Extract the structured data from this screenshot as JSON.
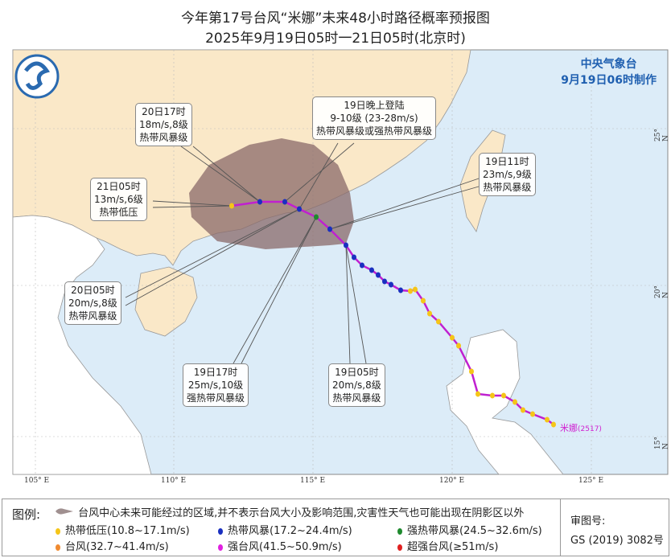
{
  "title": "今年第17号台风“米娜”未来48小时路径概率预报图",
  "subtitle": "2025年9月19日05时一21日05时(北京时)",
  "agency": {
    "name": "中央气象台",
    "made": "9月19日06时制作"
  },
  "typhoon_label": {
    "name": "米娜",
    "code": "(2517)"
  },
  "lon_ticks": [
    "105° E",
    "110° E",
    "115° E",
    "120° E",
    "125° E"
  ],
  "lat_ticks": [
    "25° N",
    "20° N",
    "15° N"
  ],
  "callouts": [
    {
      "time": "20日17时",
      "wind": "18m/s,8级",
      "level": "热带风暴级"
    },
    {
      "time": "19日晚上登陆",
      "wind": "9-10级 (23-28m/s)",
      "level": "热带风暴级或强热带风暴级"
    },
    {
      "time": "21日05时",
      "wind": "13m/s,6级",
      "level": "热带低压"
    },
    {
      "time": "19日11时",
      "wind": "23m/s,9级",
      "level": "热带风暴级"
    },
    {
      "time": "20日05时",
      "wind": "20m/s,8级",
      "level": "热带风暴级"
    },
    {
      "time": "19日17时",
      "wind": "25m/s,10级",
      "level": "强热带风暴级"
    },
    {
      "time": "19日05时",
      "wind": "20m/s,8级",
      "level": "热带风暴级"
    }
  ],
  "legend": {
    "title": "图例:",
    "cone": "台风中心未来可能经过的区域,并不表示台风大小及影响范围,灾害性天气也可能出现在阴影区以外",
    "items": [
      {
        "label": "热带低压(10.8~17.1m/s)",
        "color": "#f5c518"
      },
      {
        "label": "热带风暴(17.2~24.4m/s)",
        "color": "#1a2fc0"
      },
      {
        "label": "强热带风暴(24.5~32.6m/s)",
        "color": "#1e8a2e"
      },
      {
        "label": "台风(32.7~41.4m/s)",
        "color": "#f08a30"
      },
      {
        "label": "强台风(41.5~50.9m/s)",
        "color": "#e020e0"
      },
      {
        "label": "超强台风(≥51m/s)",
        "color": "#e02020"
      }
    ],
    "approval_label": "审图号:",
    "approval_no": "GS (2019) 3082号"
  },
  "colors": {
    "sea": "#dcecf8",
    "land": "#fae8c8",
    "foreign_land": "#ffffff",
    "track": "#c020d0",
    "cone": "#8a6a6a"
  }
}
